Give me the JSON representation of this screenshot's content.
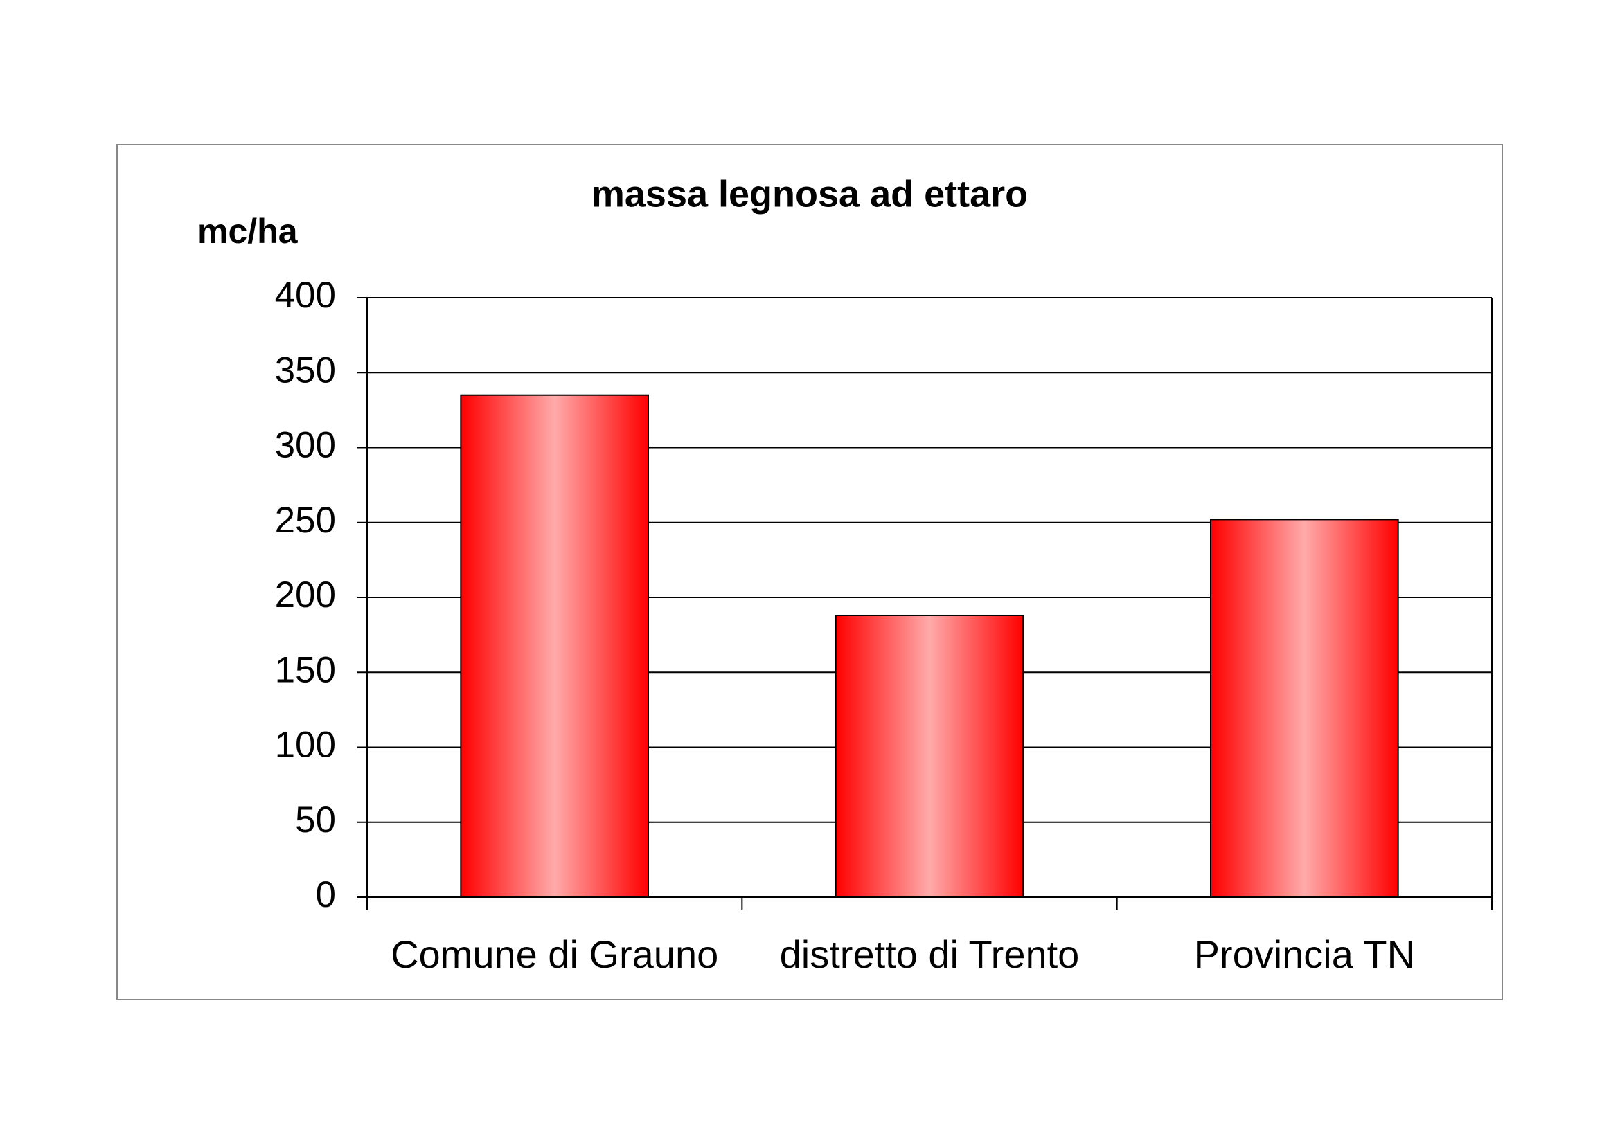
{
  "chart_data": {
    "type": "bar",
    "title": "massa legnosa ad ettaro",
    "y_label": "mc/ha",
    "categories": [
      "Comune di Grauno",
      "distretto di Trento",
      "Provincia TN"
    ],
    "values": [
      335,
      188,
      252
    ],
    "color": "#ff0000",
    "ylim": [
      0,
      400
    ],
    "yticks": [
      0,
      50,
      100,
      150,
      200,
      250,
      300,
      350,
      400
    ],
    "grid": true
  }
}
